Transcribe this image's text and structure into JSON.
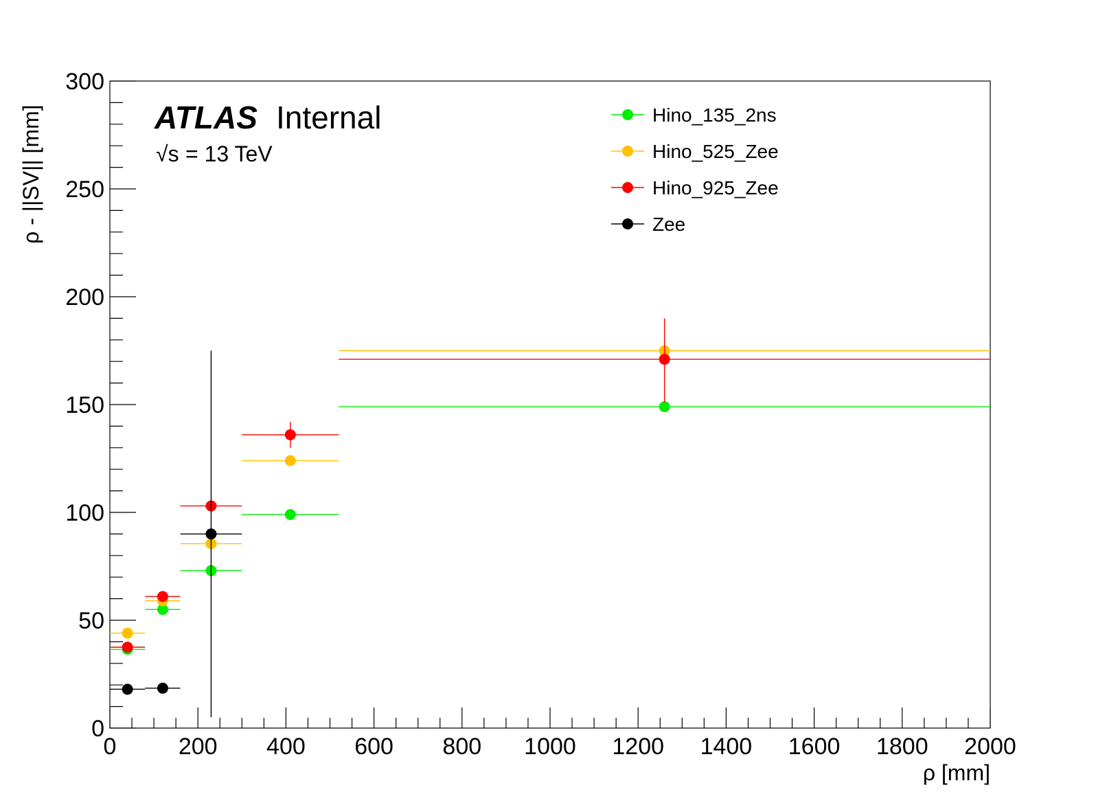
{
  "chart_data": {
    "type": "scatter",
    "experiment": "ATLAS",
    "experiment_status": "Internal",
    "energy_label": "= 13 TeV",
    "energy_sqrt_symbol": "√s",
    "xlabel": "ρ [mm]",
    "ylabel": "ρ - ||SV|| [mm]",
    "xlim": [
      0,
      2000
    ],
    "ylim": [
      0,
      300
    ],
    "x_ticks": [
      "0",
      "200",
      "400",
      "600",
      "800",
      "1000",
      "1200",
      "1400",
      "1600",
      "1800",
      "2000"
    ],
    "y_ticks": [
      "0",
      "50",
      "100",
      "150",
      "200",
      "250",
      "300"
    ],
    "legend_position": "top-right",
    "series": [
      {
        "name": "Hino_135_2ns",
        "color": "#00ee00",
        "points": [
          {
            "x": 40,
            "xlo": 0,
            "xhi": 80,
            "y": 36.5,
            "ylo": 36.5,
            "yhi": 36.5
          },
          {
            "x": 120,
            "xlo": 80,
            "xhi": 160,
            "y": 55,
            "ylo": 55,
            "yhi": 55
          },
          {
            "x": 230,
            "xlo": 160,
            "xhi": 300,
            "y": 73,
            "ylo": 73,
            "yhi": 73
          },
          {
            "x": 410,
            "xlo": 300,
            "xhi": 520,
            "y": 99,
            "ylo": 99,
            "yhi": 99
          },
          {
            "x": 1260,
            "xlo": 520,
            "xhi": 2000,
            "y": 149,
            "ylo": 149,
            "yhi": 149
          }
        ]
      },
      {
        "name": "Hino_525_Zee",
        "color": "#ffc000",
        "points": [
          {
            "x": 40,
            "xlo": 0,
            "xhi": 80,
            "y": 44,
            "ylo": 44,
            "yhi": 44
          },
          {
            "x": 120,
            "xlo": 80,
            "xhi": 160,
            "y": 59,
            "ylo": 59,
            "yhi": 59
          },
          {
            "x": 230,
            "xlo": 160,
            "xhi": 300,
            "y": 85.5,
            "ylo": 85.5,
            "yhi": 85.5
          },
          {
            "x": 410,
            "xlo": 300,
            "xhi": 520,
            "y": 124,
            "ylo": 124,
            "yhi": 124
          },
          {
            "x": 1260,
            "xlo": 520,
            "xhi": 2000,
            "y": 175,
            "ylo": 175,
            "yhi": 175
          }
        ]
      },
      {
        "name": "Hino_925_Zee",
        "color": "#ff0000",
        "points": [
          {
            "x": 40,
            "xlo": 0,
            "xhi": 80,
            "y": 37.5,
            "ylo": 37.5,
            "yhi": 37.5
          },
          {
            "x": 120,
            "xlo": 80,
            "xhi": 160,
            "y": 61,
            "ylo": 61,
            "yhi": 61
          },
          {
            "x": 230,
            "xlo": 160,
            "xhi": 300,
            "y": 103,
            "ylo": 103,
            "yhi": 103
          },
          {
            "x": 410,
            "xlo": 300,
            "xhi": 520,
            "y": 136,
            "ylo": 130,
            "yhi": 142
          },
          {
            "x": 1260,
            "xlo": 520,
            "xhi": 2000,
            "y": 171,
            "ylo": 151,
            "yhi": 190
          }
        ]
      },
      {
        "name": "Zee",
        "color": "#000000",
        "points": [
          {
            "x": 40,
            "xlo": 0,
            "xhi": 80,
            "y": 18,
            "ylo": 18,
            "yhi": 18
          },
          {
            "x": 120,
            "xlo": 80,
            "xhi": 160,
            "y": 18.5,
            "ylo": 18.5,
            "yhi": 18.5
          },
          {
            "x": 230,
            "xlo": 160,
            "xhi": 300,
            "y": 90,
            "ylo": 5,
            "yhi": 175
          }
        ]
      }
    ]
  }
}
